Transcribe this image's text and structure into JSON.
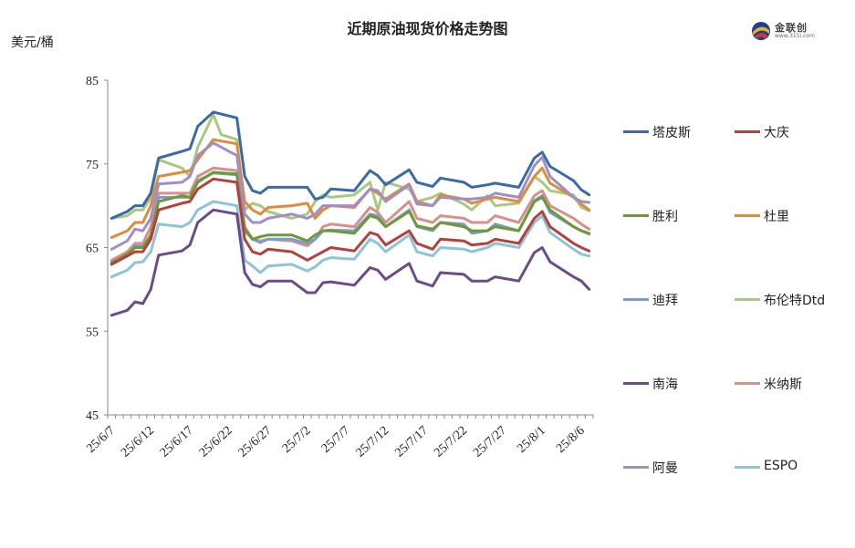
{
  "header": {
    "title": "近期原油现货价格走势图",
    "unit": "美元/桶"
  },
  "brand": {
    "name": "金联创",
    "url": "www.315i.com",
    "icon": "jlc-logo-icon"
  },
  "chart_data": {
    "type": "line",
    "title": "近期原油现货价格走势图",
    "ylabel": "美元/桶",
    "xlabel": "",
    "ylim": [
      45,
      85
    ],
    "yticks": [
      45,
      55,
      65,
      75,
      85
    ],
    "grid": false,
    "legend_position": "right",
    "x": [
      "25/6/7",
      "25/6/8",
      "25/6/9",
      "25/6/10",
      "25/6/11",
      "25/6/12",
      "25/6/13",
      "25/6/14",
      "25/6/15",
      "25/6/16",
      "25/6/17",
      "25/6/18",
      "25/6/19",
      "25/6/20",
      "25/6/21",
      "25/6/22",
      "25/6/23",
      "25/6/24",
      "25/6/25",
      "25/6/26",
      "25/6/27",
      "25/6/28",
      "25/6/29",
      "25/6/30",
      "25/7/1",
      "25/7/2",
      "25/7/3",
      "25/7/4",
      "25/7/5",
      "25/7/6",
      "25/7/7",
      "25/7/8",
      "25/7/9",
      "25/7/10",
      "25/7/11",
      "25/7/12",
      "25/7/13",
      "25/7/14",
      "25/7/15",
      "25/7/16",
      "25/7/17",
      "25/7/18",
      "25/7/19",
      "25/7/20",
      "25/7/21",
      "25/7/22",
      "25/7/23",
      "25/7/24",
      "25/7/25",
      "25/7/26",
      "25/7/27",
      "25/7/28",
      "25/7/29",
      "25/7/30",
      "25/7/31",
      "25/8/1",
      "25/8/2",
      "25/8/3",
      "25/8/4",
      "25/8/5",
      "25/8/6",
      "25/8/7"
    ],
    "x_tick_labels": [
      "25/6/7",
      "25/6/12",
      "25/6/17",
      "25/6/22",
      "25/6/27",
      "25/7/2",
      "25/7/7",
      "25/7/12",
      "25/7/17",
      "25/7/22",
      "25/7/27",
      "25/8/1",
      "25/8/6"
    ],
    "series": [
      {
        "name": "塔皮斯",
        "color": "#3a6aa8",
        "values": [
          68.5,
          null,
          69.3,
          70.0,
          70.0,
          71.5,
          75.7,
          null,
          null,
          76.5,
          76.8,
          79.5,
          null,
          81.2,
          null,
          null,
          80.5,
          73.5,
          71.8,
          71.5,
          72.2,
          null,
          null,
          72.2,
          null,
          72.2,
          70.8,
          71.0,
          72.0,
          null,
          null,
          71.8,
          null,
          74.2,
          73.6,
          72.5,
          null,
          null,
          74.3,
          72.8,
          null,
          72.3,
          73.3,
          null,
          null,
          72.8,
          72.2,
          null,
          72.5,
          72.7,
          null,
          null,
          72.2,
          null,
          75.7,
          76.4,
          74.7,
          null,
          null,
          73.0,
          71.9,
          71.3
        ]
      },
      {
        "name": "大庆",
        "color": "#b5413c",
        "values": [
          63.0,
          null,
          64.0,
          64.5,
          64.5,
          66.0,
          69.5,
          null,
          null,
          70.3,
          70.5,
          72.0,
          null,
          73.2,
          null,
          null,
          72.8,
          66.0,
          64.5,
          64.2,
          64.8,
          null,
          null,
          64.5,
          null,
          63.5,
          64.0,
          64.5,
          65.0,
          null,
          null,
          64.6,
          null,
          66.8,
          66.5,
          65.3,
          null,
          null,
          67.0,
          65.5,
          null,
          64.8,
          66.0,
          null,
          null,
          65.8,
          65.3,
          null,
          65.5,
          66.0,
          null,
          null,
          65.5,
          null,
          68.5,
          69.3,
          67.5,
          null,
          null,
          65.5,
          65.0,
          64.6
        ]
      },
      {
        "name": "胜利",
        "color": "#6e9a34",
        "values": [
          63.2,
          null,
          64.2,
          65.0,
          65.0,
          66.5,
          70.5,
          null,
          null,
          71.2,
          71.0,
          72.8,
          null,
          74.0,
          null,
          null,
          73.8,
          67.2,
          66.0,
          66.3,
          66.5,
          null,
          null,
          66.5,
          null,
          65.8,
          66.5,
          67.0,
          67.0,
          null,
          null,
          66.7,
          null,
          68.8,
          68.5,
          67.5,
          null,
          null,
          69.3,
          67.6,
          null,
          67.2,
          68.0,
          null,
          null,
          67.5,
          67.0,
          null,
          67.0,
          67.5,
          null,
          null,
          67.0,
          null,
          70.5,
          71.0,
          69.5,
          null,
          null,
          67.5,
          67.0,
          66.7
        ]
      },
      {
        "name": "杜里",
        "color": "#e08a3c",
        "values": [
          66.2,
          null,
          67.0,
          68.0,
          68.0,
          70.0,
          73.5,
          null,
          null,
          74.0,
          74.2,
          75.5,
          null,
          77.9,
          null,
          null,
          77.4,
          70.5,
          69.5,
          69.0,
          69.8,
          null,
          null,
          70.0,
          null,
          70.3,
          68.5,
          69.5,
          70.0,
          null,
          null,
          69.8,
          null,
          72.0,
          71.5,
          70.8,
          null,
          null,
          72.6,
          70.5,
          null,
          70.0,
          71.3,
          null,
          null,
          70.8,
          70.3,
          null,
          70.8,
          71.0,
          null,
          null,
          70.5,
          null,
          73.5,
          74.5,
          72.7,
          null,
          null,
          71.0,
          70.2,
          69.5
        ]
      },
      {
        "name": "迪拜",
        "color": "#7a9ccf",
        "values": [
          63.0,
          null,
          64.0,
          65.2,
          65.2,
          66.0,
          71.0,
          null,
          null,
          71.0,
          71.0,
          73.0,
          null,
          73.9,
          null,
          null,
          73.7,
          67.0,
          66.0,
          65.6,
          66.0,
          null,
          null,
          66.0,
          null,
          65.5,
          66.0,
          67.0,
          67.1,
          null,
          null,
          67.0,
          null,
          69.0,
          68.8,
          67.5,
          null,
          null,
          69.5,
          67.5,
          null,
          67.0,
          68.0,
          null,
          null,
          67.8,
          66.7,
          null,
          67.0,
          67.8,
          null,
          null,
          67.0,
          null,
          70.6,
          71.2,
          69.2,
          null,
          null,
          67.5,
          67.0,
          66.6
        ]
      },
      {
        "name": "布伦特Dtd",
        "color": "#a9c97e",
        "values": [
          68.5,
          null,
          68.8,
          69.5,
          69.5,
          71.0,
          75.5,
          null,
          null,
          74.5,
          73.5,
          77.0,
          null,
          80.9,
          78.5,
          null,
          77.9,
          69.5,
          70.3,
          70.0,
          69.3,
          null,
          null,
          68.5,
          null,
          69.0,
          70.5,
          71.3,
          71.0,
          null,
          null,
          71.3,
          null,
          72.8,
          69.5,
          72.8,
          null,
          null,
          72.0,
          70.5,
          null,
          71.0,
          71.5,
          null,
          null,
          70.2,
          69.5,
          null,
          71.2,
          70.0,
          null,
          null,
          70.3,
          null,
          73.5,
          72.8,
          71.8,
          null,
          null,
          71.3,
          69.8,
          69.4
        ]
      },
      {
        "name": "南海",
        "color": "#6a4c8c",
        "values": [
          56.9,
          null,
          57.5,
          58.5,
          58.3,
          60.0,
          64.1,
          null,
          null,
          64.6,
          65.3,
          68.0,
          null,
          69.5,
          null,
          null,
          69.0,
          62.0,
          60.6,
          60.3,
          61.0,
          null,
          null,
          61.0,
          null,
          59.6,
          59.6,
          60.8,
          60.9,
          null,
          null,
          60.5,
          null,
          62.6,
          62.3,
          61.2,
          null,
          null,
          63.1,
          61.0,
          null,
          60.4,
          62.0,
          null,
          null,
          61.8,
          61.0,
          null,
          61.0,
          61.5,
          null,
          null,
          61.0,
          null,
          64.4,
          65.0,
          63.3,
          null,
          null,
          61.5,
          61.0,
          60.0
        ]
      },
      {
        "name": "米纳斯",
        "color": "#d98f8a",
        "values": [
          63.5,
          null,
          64.5,
          65.5,
          65.5,
          67.5,
          71.5,
          null,
          null,
          71.5,
          71.5,
          73.5,
          null,
          74.5,
          null,
          null,
          74.2,
          67.5,
          66.0,
          65.8,
          66.0,
          null,
          null,
          65.8,
          null,
          65.2,
          66.0,
          67.5,
          67.8,
          null,
          null,
          67.5,
          null,
          69.8,
          69.2,
          68.0,
          null,
          null,
          70.5,
          68.5,
          null,
          68.0,
          68.8,
          null,
          null,
          68.5,
          68.0,
          null,
          68.0,
          68.8,
          null,
          null,
          68.0,
          null,
          71.2,
          71.8,
          70.0,
          null,
          null,
          68.5,
          67.8,
          67.2
        ]
      },
      {
        "name": "阿曼",
        "color": "#a08ec8",
        "values": [
          64.8,
          null,
          65.8,
          67.2,
          67.0,
          68.5,
          72.6,
          null,
          null,
          72.8,
          73.5,
          76.0,
          null,
          77.5,
          null,
          null,
          76.0,
          69.0,
          68.0,
          68.0,
          68.5,
          null,
          null,
          69.0,
          null,
          68.5,
          69.0,
          70.0,
          70.0,
          null,
          null,
          70.0,
          null,
          72.0,
          71.8,
          70.5,
          null,
          null,
          72.5,
          70.2,
          null,
          70.0,
          71.0,
          null,
          null,
          70.8,
          70.8,
          null,
          71.0,
          71.5,
          null,
          null,
          71.0,
          null,
          74.8,
          75.8,
          73.5,
          null,
          null,
          71.0,
          70.5,
          70.4
        ]
      },
      {
        "name": "ESPO",
        "color": "#8cc4d8",
        "values": [
          61.5,
          null,
          62.3,
          63.2,
          63.3,
          64.5,
          67.8,
          null,
          null,
          67.5,
          68.0,
          69.5,
          null,
          70.5,
          null,
          null,
          70.0,
          63.5,
          62.8,
          62.0,
          62.8,
          null,
          null,
          63.0,
          null,
          62.2,
          62.7,
          63.5,
          63.8,
          null,
          null,
          63.6,
          null,
          66.0,
          65.5,
          64.5,
          null,
          null,
          66.5,
          64.5,
          null,
          64.0,
          65.0,
          null,
          null,
          64.8,
          64.5,
          null,
          65.0,
          65.5,
          null,
          null,
          65.0,
          null,
          68.0,
          68.8,
          66.8,
          null,
          null,
          64.8,
          64.2,
          64.0
        ]
      }
    ]
  }
}
